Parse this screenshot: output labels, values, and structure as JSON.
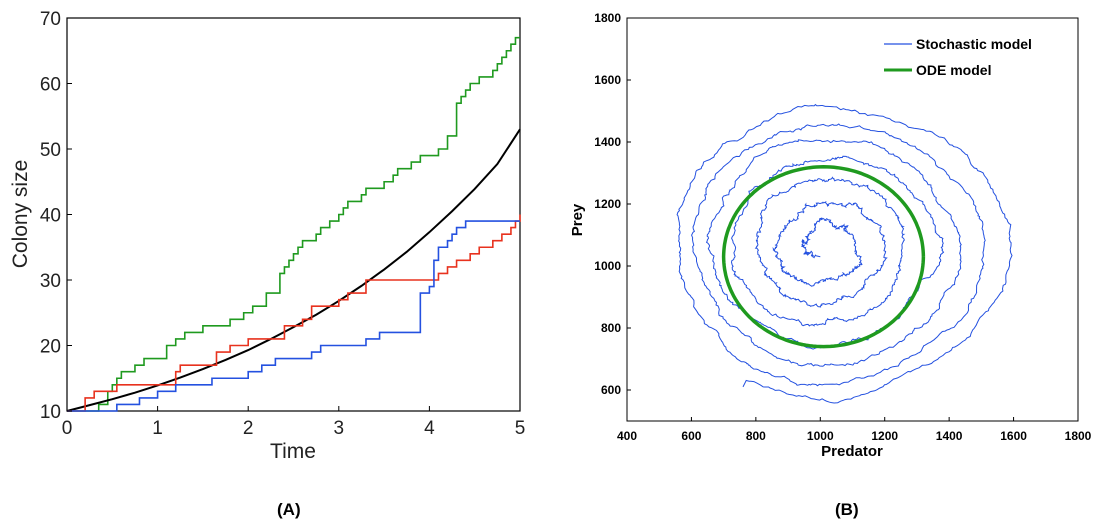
{
  "panel_labels": [
    "(A)",
    "(B)"
  ],
  "chart_data": [
    {
      "type": "line",
      "panel": "(A)",
      "xlabel": "Time",
      "ylabel": "Colony size",
      "xlim": [
        0,
        5
      ],
      "ylim": [
        10,
        70
      ],
      "xticks": [
        0,
        1,
        2,
        3,
        4,
        5
      ],
      "yticks": [
        10,
        20,
        30,
        40,
        50,
        60,
        70
      ],
      "grid": false,
      "series": [
        {
          "color": "#1f9a1f",
          "style": "step",
          "x": [
            0,
            0.35,
            0.45,
            0.5,
            0.55,
            0.6,
            0.75,
            0.85,
            1.1,
            1.2,
            1.3,
            1.5,
            1.55,
            1.8,
            1.95,
            2.05,
            2.2,
            2.35,
            2.4,
            2.45,
            2.5,
            2.55,
            2.6,
            2.75,
            2.8,
            2.9,
            3.0,
            3.05,
            3.1,
            3.15,
            3.25,
            3.3,
            3.5,
            3.6,
            3.65,
            3.7,
            3.8,
            3.85,
            3.9,
            4.05,
            4.1,
            4.2,
            4.3,
            4.35,
            4.4,
            4.45,
            4.55,
            4.7,
            4.75,
            4.8,
            4.85,
            4.9,
            4.95,
            5.0
          ],
          "y": [
            10,
            11,
            13,
            14,
            15,
            16,
            17,
            18,
            20,
            21,
            22,
            23,
            23,
            24,
            25,
            26,
            28,
            31,
            32,
            33,
            34,
            35,
            36,
            37,
            38,
            39,
            40,
            41,
            42,
            42,
            43,
            44,
            45,
            46,
            47,
            47,
            48,
            48,
            49,
            49,
            50,
            52,
            57,
            58,
            59,
            60,
            61,
            62,
            63,
            64,
            65,
            66,
            67,
            67
          ]
        },
        {
          "color": "#000000",
          "style": "smooth",
          "x": [
            0,
            0.25,
            0.5,
            0.75,
            1.0,
            1.25,
            1.5,
            1.75,
            2.0,
            2.25,
            2.5,
            2.75,
            3.0,
            3.25,
            3.5,
            3.75,
            4.0,
            4.25,
            4.5,
            4.75,
            5.0
          ],
          "y": [
            10.0,
            10.9,
            11.8,
            12.8,
            13.9,
            15.1,
            16.4,
            17.8,
            19.3,
            21.0,
            22.8,
            24.7,
            26.8,
            29.1,
            31.6,
            34.3,
            37.3,
            40.5,
            43.9,
            47.7,
            53.0
          ]
        },
        {
          "color": "#e8321e",
          "style": "step",
          "x": [
            0,
            0.2,
            0.3,
            0.55,
            0.85,
            1.2,
            1.25,
            1.6,
            1.65,
            1.8,
            1.9,
            2.0,
            2.1,
            2.4,
            2.6,
            2.7,
            2.9,
            3.0,
            3.1,
            3.3,
            4.0,
            4.1,
            4.2,
            4.3,
            4.45,
            4.55,
            4.6,
            4.7,
            4.8,
            4.9,
            4.95,
            5.0
          ],
          "y": [
            10,
            12,
            13,
            14,
            14,
            16,
            17,
            17,
            19,
            20,
            20,
            21,
            21,
            23,
            24,
            26,
            26,
            27,
            28,
            30,
            30,
            31,
            32,
            33,
            34,
            35,
            35,
            36,
            37,
            38,
            39,
            40
          ]
        },
        {
          "color": "#2451e0",
          "style": "step",
          "x": [
            0,
            0.35,
            0.55,
            0.7,
            0.8,
            1.0,
            1.2,
            1.5,
            1.6,
            1.95,
            2.0,
            2.15,
            2.3,
            2.7,
            2.8,
            3.3,
            3.45,
            3.9,
            4.0,
            4.05,
            4.1,
            4.2,
            4.25,
            4.3,
            4.4,
            4.55,
            4.85,
            5.0
          ],
          "y": [
            10,
            10,
            11,
            11,
            12,
            13,
            14,
            14,
            15,
            15,
            16,
            17,
            18,
            19,
            20,
            21,
            22,
            28,
            29,
            33,
            35,
            36,
            37,
            38,
            39,
            39,
            39,
            39
          ]
        }
      ]
    },
    {
      "type": "line",
      "panel": "(B)",
      "xlabel": "Predator",
      "ylabel": "Prey",
      "xlim": [
        400,
        1800
      ],
      "ylim": [
        500,
        1800
      ],
      "xticks": [
        400,
        600,
        800,
        1000,
        1200,
        1400,
        1600,
        1800
      ],
      "yticks": [
        600,
        800,
        1000,
        1200,
        1400,
        1600,
        1800
      ],
      "grid": false,
      "legend_position": "top-right",
      "legend": [
        {
          "label": "Stochastic model",
          "color": "#2451e0"
        },
        {
          "label": "ODE model",
          "color": "#1f9a1f"
        }
      ],
      "stochastic_spiral": {
        "center": [
          1010,
          1060
        ],
        "start": [
          760,
          610
        ],
        "end": [
          1000,
          1030
        ],
        "turns": 7,
        "outermost_extent": {
          "x": [
            620,
            1650
          ],
          "y": [
            600,
            1580
          ]
        }
      },
      "ode_cycle": {
        "center": [
          1010,
          1030
        ],
        "x_range": [
          700,
          1320
        ],
        "y_range": [
          740,
          1320
        ]
      }
    }
  ]
}
